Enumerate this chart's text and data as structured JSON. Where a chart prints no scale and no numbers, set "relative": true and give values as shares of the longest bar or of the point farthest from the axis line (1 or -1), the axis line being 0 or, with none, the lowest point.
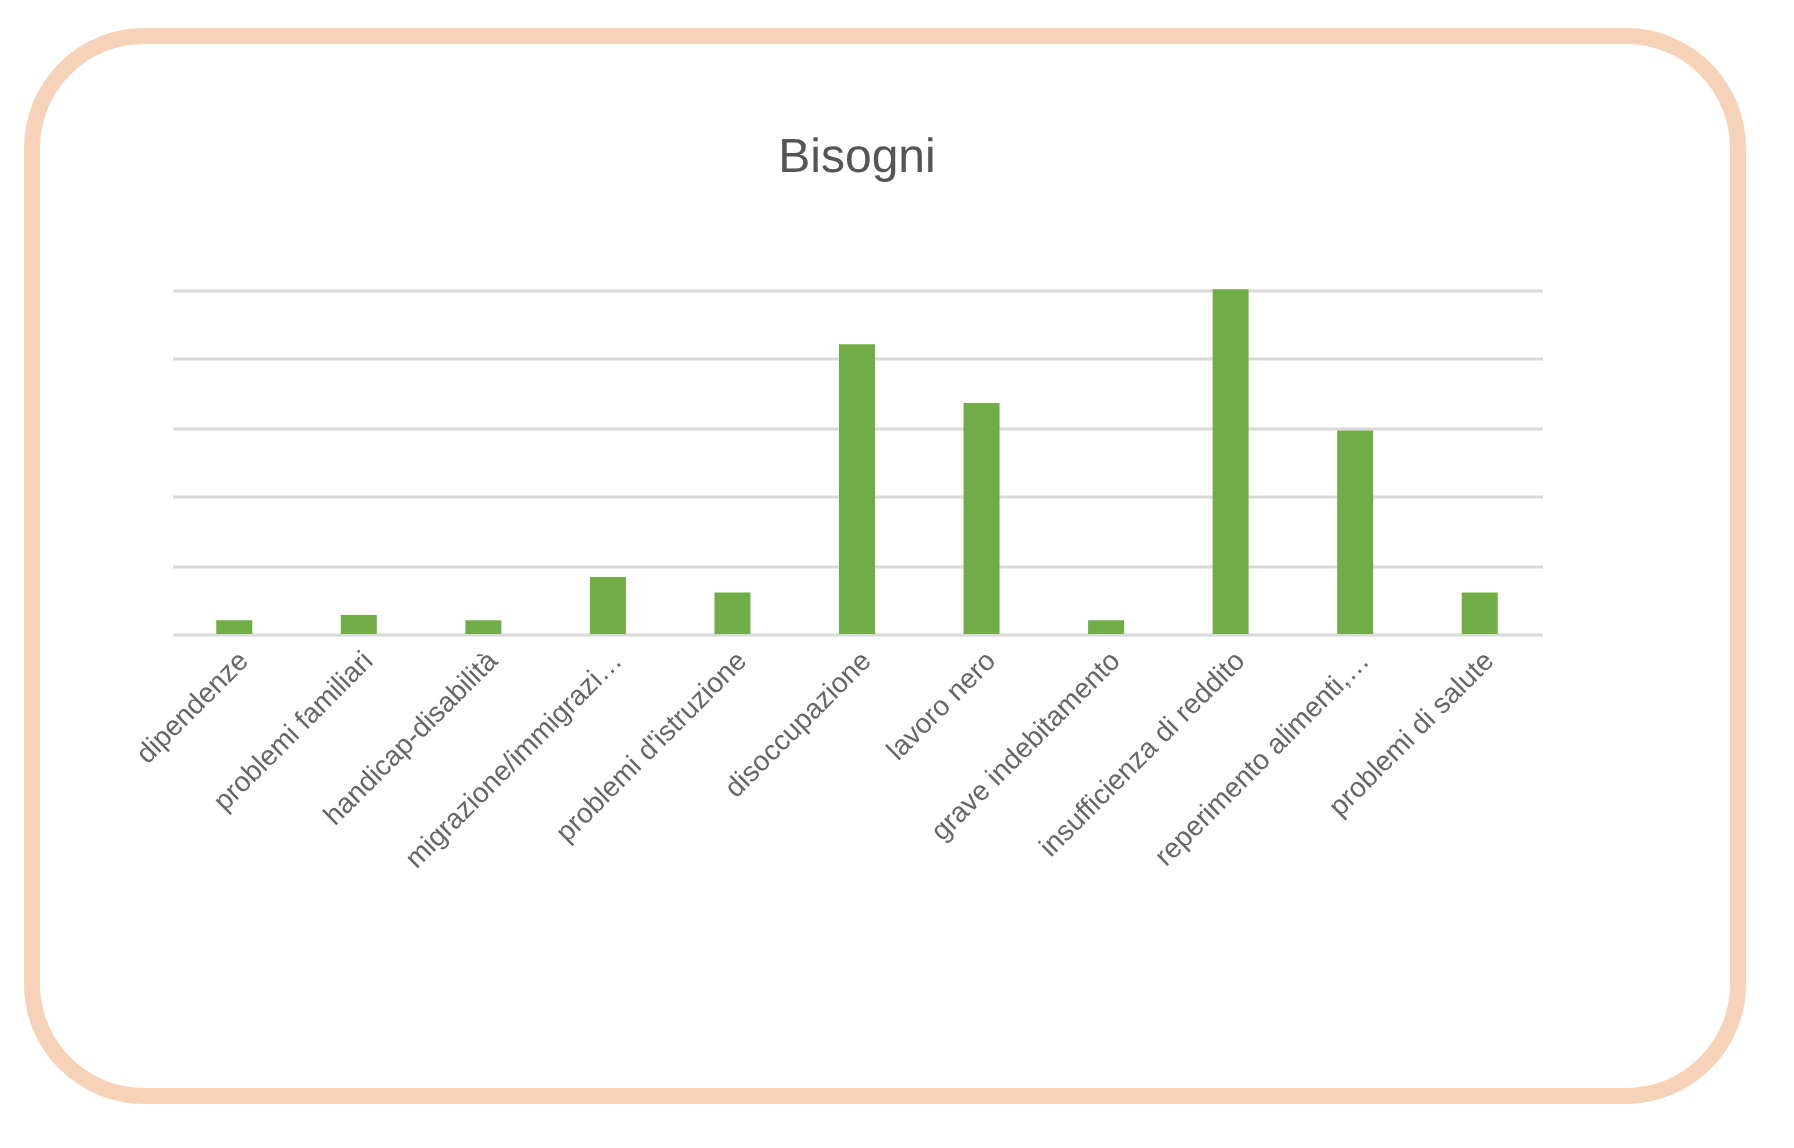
{
  "chart_data": {
    "type": "bar",
    "title": "Bisogni",
    "relative": true,
    "grid": "y",
    "color": "#70ad47",
    "categories": [
      "dipendenze",
      "problemi familiari",
      "handicap-disabilità",
      "migrazione/immigrazi…",
      "problemi d'istruzione",
      "disoccupazione",
      "lavoro nero",
      "grave indebitamento",
      "insufficienza di reddito",
      "reperimento alimenti,…",
      "problemi di salute"
    ],
    "values": [
      0.04,
      0.055,
      0.04,
      0.165,
      0.12,
      0.84,
      0.67,
      0.04,
      1,
      0.59,
      0.12
    ]
  }
}
